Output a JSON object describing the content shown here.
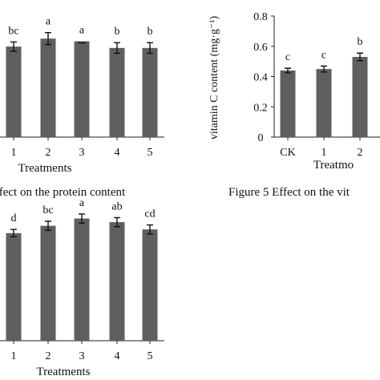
{
  "captions": {
    "left": "ffect on the protein content",
    "right": "Figure 5 Effect on the vit"
  },
  "chart_data": [
    {
      "id": "protein",
      "type": "bar",
      "xlabel": "Treatments",
      "ylabel": "",
      "categories": [
        "1",
        "2",
        "3",
        "4",
        "5"
      ],
      "values": [
        0.68,
        0.74,
        0.72,
        0.67,
        0.67
      ],
      "errors": [
        0.035,
        0.045,
        0.0,
        0.04,
        0.04
      ],
      "letters": [
        "bc",
        "a",
        "a",
        "b",
        "b"
      ],
      "ylim": [
        0,
        1.0
      ],
      "grid": false
    },
    {
      "id": "vitaminC",
      "type": "bar",
      "xlabel": "Treatmo",
      "ylabel": "vitamin C content (mg·g⁻¹)",
      "categories": [
        "CK",
        "1",
        "2"
      ],
      "values": [
        0.44,
        0.45,
        0.53
      ],
      "errors": [
        0.015,
        0.02,
        0.025
      ],
      "letters": [
        "c",
        "c",
        "b"
      ],
      "yticks": [
        "0",
        "0.2",
        "0.4",
        "0.6",
        "0.8"
      ],
      "ylim": [
        0,
        0.8
      ],
      "grid": false
    },
    {
      "id": "third",
      "type": "bar",
      "xlabel": "Treatments",
      "ylabel": "",
      "categories": [
        "1",
        "2",
        "3",
        "4",
        "5"
      ],
      "values": [
        0.59,
        0.63,
        0.67,
        0.65,
        0.61
      ],
      "errors": [
        0.02,
        0.025,
        0.025,
        0.025,
        0.025
      ],
      "letters": [
        "d",
        "bc",
        "a",
        "ab",
        "cd"
      ],
      "ylim": [
        0,
        0.8
      ],
      "grid": false
    }
  ]
}
